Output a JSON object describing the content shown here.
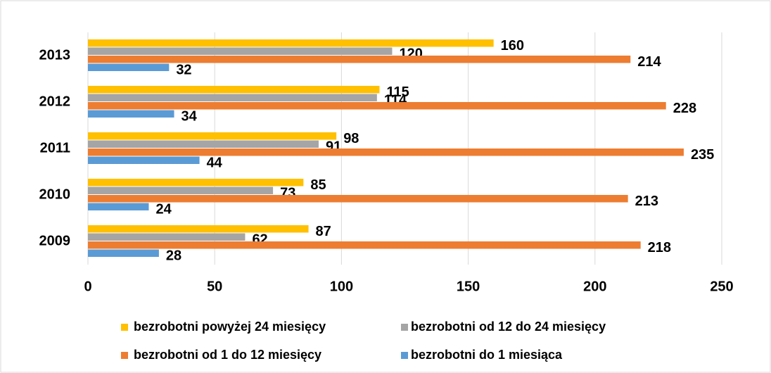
{
  "chart_data": {
    "type": "bar",
    "categories": [
      "2009",
      "2010",
      "2011",
      "2012",
      "2013"
    ],
    "series": [
      {
        "name": "bezrobotni powyżej 24 miesięcy",
        "color": "#ffc000",
        "values": [
          87,
          85,
          98,
          115,
          160
        ]
      },
      {
        "name": "bezrobotni od 12 do 24 miesięcy",
        "color": "#a5a5a5",
        "values": [
          62,
          73,
          91,
          114,
          120
        ]
      },
      {
        "name": "bezrobotni od 1 do 12 miesięcy",
        "color": "#ed7d31",
        "values": [
          218,
          213,
          235,
          228,
          214
        ]
      },
      {
        "name": "bezrobotni do 1 miesiąca",
        "color": "#5b9bd5",
        "values": [
          28,
          24,
          44,
          34,
          32
        ]
      }
    ],
    "xlim": [
      0,
      250
    ],
    "xticks": [
      0,
      50,
      100,
      150,
      200,
      250
    ],
    "grid": true,
    "legend": "bottom"
  }
}
